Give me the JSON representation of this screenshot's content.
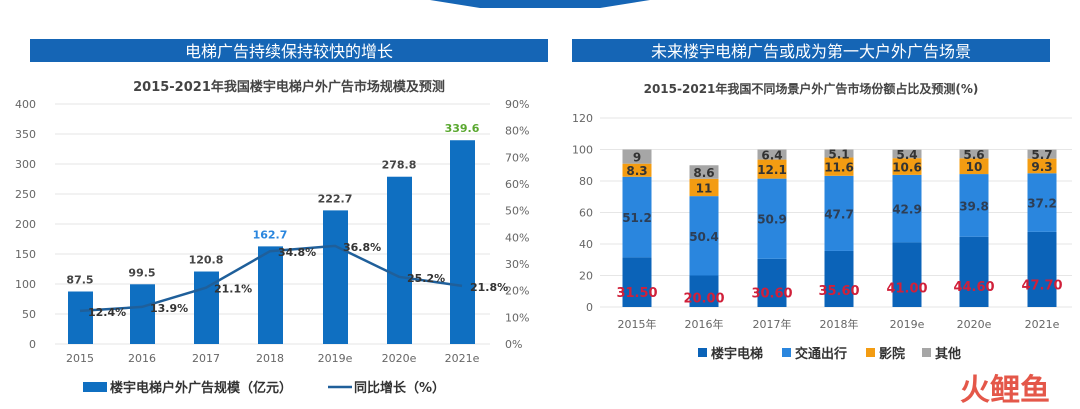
{
  "colors": {
    "bar": "#0f6fc1",
    "line": "#1f5f9a",
    "banner": "#1565b5",
    "s1": "#0b63b8",
    "s2": "#2a86de",
    "s3": "#f39c12",
    "s4": "#a6a6a6",
    "red": "#d0203a",
    "green": "#5aa830",
    "blue_label": "#2a86de"
  },
  "watermark": "火鲤鱼",
  "chart_data": [
    {
      "type": "bar+line",
      "banner": "电梯广告持续保持较快的增长",
      "title": "2015-2021年我国楼宇电梯户外广告市场规模及预测",
      "categories": [
        "2015",
        "2016",
        "2017",
        "2018",
        "2019e",
        "2020e",
        "2021e"
      ],
      "series": [
        {
          "name": "楼宇电梯户外广告规模（亿元）",
          "type": "bar",
          "values": [
            87.5,
            99.5,
            120.8,
            162.7,
            222.7,
            278.8,
            339.6
          ],
          "labels": [
            "87.5",
            "99.5",
            "120.8",
            "162.7",
            "222.7",
            "278.8",
            "339.6"
          ]
        },
        {
          "name": "同比增长（%）",
          "type": "line",
          "axis": "right",
          "values": [
            12.4,
            13.9,
            21.1,
            34.8,
            36.8,
            25.2,
            21.8
          ],
          "labels": [
            "12.4%",
            "13.9%",
            "21.1%",
            "34.8%",
            "36.8%",
            "25.2%",
            "21.8%"
          ]
        }
      ],
      "ylim": [
        0,
        400
      ],
      "yticks": [
        "0",
        "50",
        "100",
        "150",
        "200",
        "250",
        "300",
        "350",
        "400"
      ],
      "y2lim": [
        0,
        90
      ],
      "y2ticks": [
        "0%",
        "10%",
        "20%",
        "30%",
        "40%",
        "50%",
        "60%",
        "70%",
        "80%",
        "90%"
      ],
      "legend": "bottom"
    },
    {
      "type": "stacked-bar",
      "banner": "未来楼宇电梯广告或成为第一大户外广告场景",
      "title": "2015-2021年我国不同场景户外广告市场份额占比及预测(%)",
      "categories": [
        "2015年",
        "2016年",
        "2017年",
        "2018年",
        "2019e",
        "2020e",
        "2021e"
      ],
      "series": [
        {
          "name": "楼宇电梯",
          "values": [
            31.5,
            20.0,
            30.6,
            35.6,
            41.0,
            44.6,
            47.7
          ],
          "labels": [
            "31.50",
            "20.00",
            "30.60",
            "35.60",
            "41.00",
            "44.60",
            "47.70"
          ]
        },
        {
          "name": "交通出行",
          "values": [
            51.2,
            50.4,
            50.9,
            47.7,
            42.9,
            39.8,
            37.2
          ],
          "labels": [
            "51.2",
            "50.4",
            "50.9",
            "47.7",
            "42.9",
            "39.8",
            "37.2"
          ]
        },
        {
          "name": "影院",
          "values": [
            8.3,
            11,
            12.1,
            11.6,
            10.6,
            10,
            9.3
          ],
          "labels": [
            "8.3",
            "11",
            "12.1",
            "11.6",
            "10.6",
            "10",
            "9.3"
          ]
        },
        {
          "name": "其他",
          "values": [
            9,
            8.6,
            6.4,
            5.1,
            5.4,
            5.6,
            5.7
          ],
          "labels": [
            "9",
            "8.6",
            "6.4",
            "5.1",
            "5.4",
            "5.6",
            "5.7"
          ]
        }
      ],
      "ylim": [
        0,
        120
      ],
      "yticks": [
        "0",
        "20",
        "40",
        "60",
        "80",
        "100",
        "120"
      ],
      "legend": "bottom"
    }
  ]
}
